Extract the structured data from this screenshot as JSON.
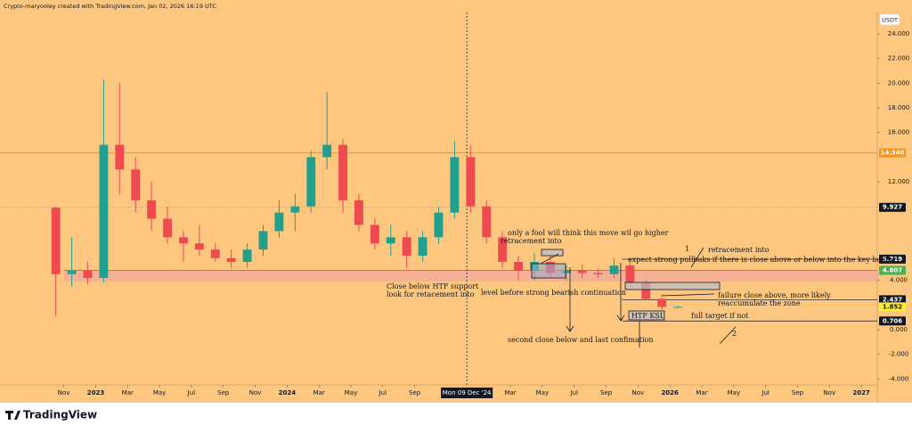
{
  "chart_data": {
    "type": "candlestick",
    "credit": "Crypto-maryooley created with TradingView.com, Jan 02, 2026 16:19 UTC",
    "unit": "USDT",
    "x": [
      "2022-10",
      "2022-11",
      "2022-12",
      "2023-01",
      "2023-02",
      "2023-03",
      "2023-04",
      "2023-05",
      "2023-06",
      "2023-07",
      "2023-08",
      "2023-09",
      "2023-10",
      "2023-11",
      "2023-12",
      "2024-01",
      "2024-02",
      "2024-03",
      "2024-04",
      "2024-05",
      "2024-06",
      "2024-07",
      "2024-08",
      "2024-09",
      "2024-10",
      "2024-11",
      "2024-12",
      "2025-01",
      "2025-02",
      "2025-03",
      "2025-04",
      "2025-05",
      "2025-06",
      "2025-07",
      "2025-08",
      "2025-09",
      "2025-10",
      "2025-11",
      "2025-12",
      "2026-01"
    ],
    "open": [
      9.9,
      4.5,
      4.8,
      4.2,
      15,
      13,
      10.5,
      9,
      7.5,
      7,
      6.5,
      5.8,
      5.5,
      6.5,
      8,
      9.5,
      10,
      14,
      15,
      10.5,
      8.5,
      7,
      7.5,
      6,
      7.5,
      9.5,
      14,
      10,
      7.5,
      5.5,
      4.8,
      5.5,
      4.6,
      4.8,
      4.6,
      4.5,
      5.2,
      3.8,
      2.5,
      1.85
    ],
    "high": [
      10,
      7.5,
      5.5,
      20.3,
      20,
      14,
      12,
      10,
      8,
      8.5,
      7,
      6.5,
      7,
      8.5,
      10.5,
      11,
      14.5,
      19.3,
      15.5,
      11,
      9,
      8.5,
      8,
      8,
      10,
      15.3,
      15,
      10.5,
      8,
      6,
      6.2,
      6,
      5.2,
      5.3,
      5,
      5.8,
      5.7,
      4,
      2.6,
      1.95
    ],
    "low": [
      1.1,
      3.5,
      3.7,
      3.8,
      11,
      9.5,
      8,
      7,
      5.5,
      6,
      5.5,
      5,
      5,
      6,
      7.5,
      8,
      9.5,
      13,
      9.5,
      8,
      6.5,
      6,
      5,
      5.5,
      7,
      9,
      9.5,
      7,
      5,
      4,
      4,
      4.3,
      4,
      4.2,
      4.2,
      4.2,
      3.5,
      2.4,
      1.6,
      1.8
    ],
    "close": [
      4.5,
      4.8,
      4.2,
      15,
      13,
      10.5,
      9,
      7.5,
      7,
      6.5,
      5.8,
      5.5,
      6.5,
      8,
      9.5,
      10,
      14,
      15,
      10.5,
      8.5,
      7,
      7.5,
      6,
      7.5,
      9.5,
      14,
      10,
      7.5,
      5.5,
      4.8,
      5.5,
      4.6,
      4.8,
      4.6,
      4.5,
      5.2,
      3.8,
      2.5,
      1.85,
      1.85
    ],
    "up_color": "#22a08f",
    "down_color": "#ef4a50",
    "xlim": [
      "2022-07",
      "2027-02"
    ],
    "xticks": [
      {
        "value": "2022-11",
        "label": "Nov"
      },
      {
        "value": "2023-01",
        "label": "2023"
      },
      {
        "value": "2023-03",
        "label": "Mar"
      },
      {
        "value": "2023-05",
        "label": "May"
      },
      {
        "value": "2023-07",
        "label": "Jul"
      },
      {
        "value": "2023-09",
        "label": "Sep"
      },
      {
        "value": "2023-11",
        "label": "Nov"
      },
      {
        "value": "2024-01",
        "label": "2024"
      },
      {
        "value": "2024-03",
        "label": "Mar"
      },
      {
        "value": "2024-05",
        "label": "May"
      },
      {
        "value": "2024-07",
        "label": "Jul"
      },
      {
        "value": "2024-09",
        "label": "Sep"
      },
      {
        "value": "2025-03",
        "label": "Mar"
      },
      {
        "value": "2025-05",
        "label": "May"
      },
      {
        "value": "2025-07",
        "label": "Jul"
      },
      {
        "value": "2025-09",
        "label": "Sep"
      },
      {
        "value": "2025-11",
        "label": "Nov"
      },
      {
        "value": "2026-01",
        "label": "2026"
      },
      {
        "value": "2026-03",
        "label": "Mar"
      },
      {
        "value": "2026-05",
        "label": "May"
      },
      {
        "value": "2026-07",
        "label": "Jul"
      },
      {
        "value": "2026-09",
        "label": "Sep"
      },
      {
        "value": "2026-11",
        "label": "Nov"
      },
      {
        "value": "2027-01",
        "label": "2027"
      }
    ],
    "crosshair": {
      "x": "2024-12-09",
      "label": "Mon 09 Dec '24"
    },
    "ylim": [
      -4.48,
      25.74
    ],
    "yticks": [
      {
        "value": 24,
        "label": "24.000"
      },
      {
        "value": 22,
        "label": "22.000"
      },
      {
        "value": 20,
        "label": "20.000"
      },
      {
        "value": 18,
        "label": "18.000"
      },
      {
        "value": 16,
        "label": "16.000"
      },
      {
        "value": 12,
        "label": "12.000"
      },
      {
        "value": 4,
        "label": "4.000"
      },
      {
        "value": 0,
        "label": "0.000"
      },
      {
        "value": -2,
        "label": "-2.000"
      },
      {
        "value": -4,
        "label": "-4.000"
      }
    ],
    "price_labels": [
      {
        "value": 14.34,
        "label": "14.340",
        "color": "#f7931a"
      },
      {
        "value": 9.927,
        "label": "9.927",
        "color": "#131722"
      },
      {
        "value": 5.719,
        "label": "5.719",
        "color": "#131722"
      },
      {
        "value": 4.807,
        "label": "4.807",
        "color": "#4caf50"
      },
      {
        "value": 2.437,
        "label": "2.437",
        "color": "#131722"
      },
      {
        "value": 1.852,
        "label": "1.852",
        "color": "#ffeb3b"
      },
      {
        "value": 0.706,
        "label": "0.706",
        "color": "#131722"
      }
    ],
    "annotations": [
      "only a fool will think this move wil go higher",
      "retracement into",
      "Close below HTF support",
      "look for retacement into",
      "level before strong bearish continuation",
      "second close below and last confimation",
      "retracement into",
      "expect strong pullbaks if there is close above or below into the key bellow",
      "failure close above, more likely",
      "reaccumulate the zone",
      "HTF KSL",
      "full target if not",
      "1",
      "2"
    ]
  },
  "footer": {
    "brand": "TradingView"
  }
}
